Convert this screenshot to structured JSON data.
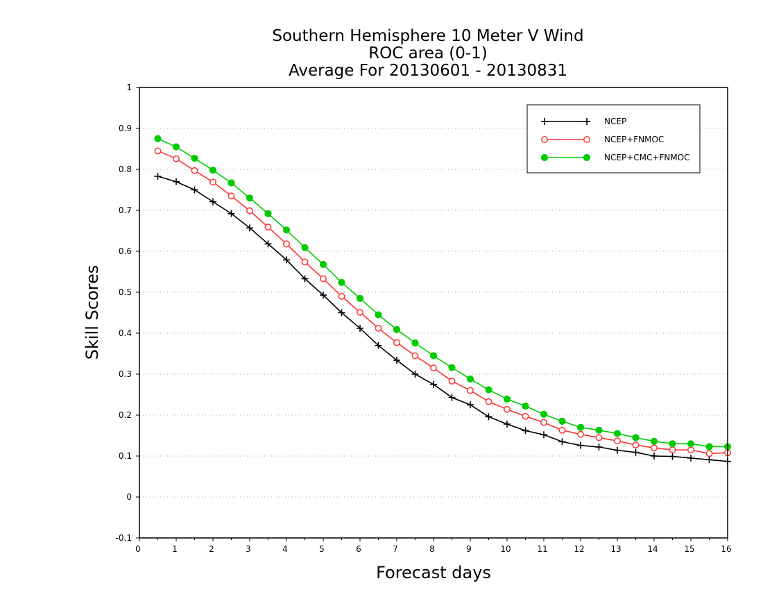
{
  "chart_data": {
    "type": "line",
    "title_lines": [
      "Southern Hemisphere 10 Meter V Wind",
      "ROC area (0-1)",
      "Average For 20130601 - 20130831"
    ],
    "xlabel": "Forecast days",
    "ylabel": "Skill Scores",
    "xlim": [
      0,
      16
    ],
    "ylim": [
      -0.1,
      1
    ],
    "xticks": [
      0,
      1,
      2,
      3,
      4,
      5,
      6,
      7,
      8,
      9,
      10,
      11,
      12,
      13,
      14,
      15,
      16
    ],
    "yticks": [
      -0.1,
      0,
      0.1,
      0.2,
      0.3,
      0.4,
      0.5,
      0.6,
      0.7,
      0.8,
      0.9,
      1
    ],
    "ytick_labels": [
      "-0.1",
      "0",
      "0.1",
      "0.2",
      "0.3",
      "0.4",
      "0.5",
      "0.6",
      "0.7",
      "0.8",
      "0.9",
      "1"
    ],
    "grid": "horizontal dotted",
    "legend_position": "top-right",
    "x": [
      0.5,
      1,
      1.5,
      2,
      2.5,
      3,
      3.5,
      4,
      4.5,
      5,
      5.5,
      6,
      6.5,
      7,
      7.5,
      8,
      8.5,
      9,
      9.5,
      10,
      10.5,
      11,
      11.5,
      12,
      12.5,
      13,
      13.5,
      14,
      14.5,
      15,
      15.5,
      16
    ],
    "series": [
      {
        "name": "NCEP",
        "color": "#000000",
        "marker": "plus",
        "values": [
          0.783,
          0.77,
          0.75,
          0.721,
          0.692,
          0.657,
          0.618,
          0.579,
          0.533,
          0.493,
          0.45,
          0.412,
          0.37,
          0.334,
          0.3,
          0.275,
          0.243,
          0.225,
          0.196,
          0.178,
          0.162,
          0.152,
          0.135,
          0.126,
          0.122,
          0.114,
          0.109,
          0.1,
          0.099,
          0.095,
          0.091,
          0.087
        ]
      },
      {
        "name": "NCEP+FNMOC",
        "color": "#ff3333",
        "marker": "open-circle",
        "values": [
          0.845,
          0.826,
          0.797,
          0.769,
          0.735,
          0.699,
          0.659,
          0.618,
          0.574,
          0.533,
          0.49,
          0.451,
          0.412,
          0.377,
          0.345,
          0.315,
          0.283,
          0.26,
          0.233,
          0.214,
          0.197,
          0.182,
          0.163,
          0.153,
          0.145,
          0.137,
          0.127,
          0.12,
          0.115,
          0.115,
          0.106,
          0.108
        ]
      },
      {
        "name": "NCEP+CMC+FNMOC",
        "color": "#00cc00",
        "marker": "filled-circle",
        "values": [
          0.875,
          0.855,
          0.827,
          0.798,
          0.767,
          0.73,
          0.692,
          0.652,
          0.609,
          0.568,
          0.524,
          0.485,
          0.445,
          0.409,
          0.376,
          0.345,
          0.316,
          0.288,
          0.262,
          0.239,
          0.222,
          0.202,
          0.185,
          0.17,
          0.163,
          0.155,
          0.145,
          0.136,
          0.13,
          0.13,
          0.123,
          0.123
        ]
      }
    ]
  }
}
